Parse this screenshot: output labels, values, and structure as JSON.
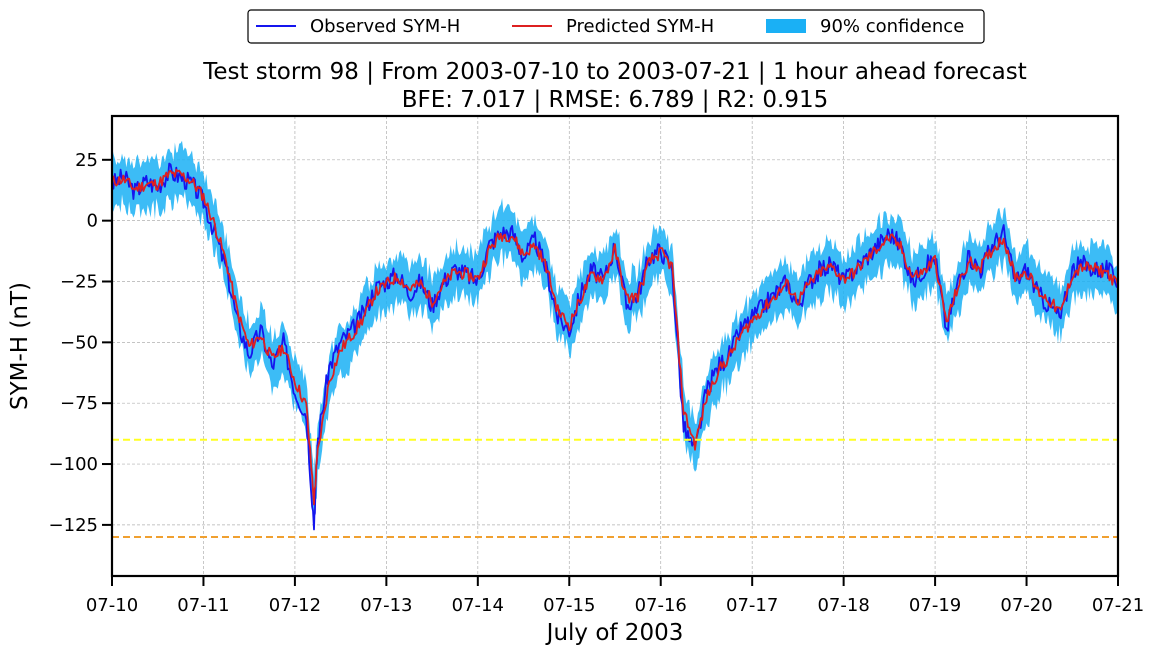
{
  "legend": {
    "items": [
      {
        "label": "Observed SYM-H",
        "color": "#1515ee",
        "kind": "line"
      },
      {
        "label": "Predicted SYM-H",
        "color": "#dd2020",
        "kind": "line"
      },
      {
        "label": "90% confidence",
        "color": "#1ab0f5",
        "kind": "patch"
      }
    ]
  },
  "chart_data": {
    "type": "line",
    "title": "Test storm 98 | From 2003-07-10 to 2003-07-21 | 1 hour ahead forecast",
    "subtitle": "BFE: 7.017 | RMSE: 6.789 | R2: 0.915",
    "xlabel": "July of 2003",
    "ylabel": "SYM-H (nT)",
    "xlim": [
      "2003-07-10",
      "2003-07-21"
    ],
    "ylim": [
      -146,
      43
    ],
    "grid": true,
    "legend_position": "top-center, outside",
    "x_ticks": [
      "07-10",
      "07-11",
      "07-12",
      "07-13",
      "07-14",
      "07-15",
      "07-16",
      "07-17",
      "07-18",
      "07-19",
      "07-20",
      "07-21"
    ],
    "y_ticks": [
      25,
      0,
      -25,
      -50,
      -75,
      -100,
      -125
    ],
    "y_tick_labels": [
      "25",
      "0",
      "−25",
      "−50",
      "−75",
      "−100",
      "−125"
    ],
    "threshold_lines": [
      {
        "y": -90,
        "color": "#ffff20"
      },
      {
        "y": -130,
        "color": "#f0a030"
      }
    ],
    "series": [
      {
        "name": "Observed SYM-H",
        "color": "#1515ee",
        "x": [
          "2003-07-10T00:00",
          "2003-07-10T03:00",
          "2003-07-10T06:00",
          "2003-07-10T09:00",
          "2003-07-10T12:00",
          "2003-07-10T15:00",
          "2003-07-10T18:00",
          "2003-07-10T21:00",
          "2003-07-11T00:00",
          "2003-07-11T03:00",
          "2003-07-11T06:00",
          "2003-07-11T09:00",
          "2003-07-11T12:00",
          "2003-07-11T15:00",
          "2003-07-11T18:00",
          "2003-07-11T21:00",
          "2003-07-12T00:00",
          "2003-07-12T03:00",
          "2003-07-12T05:00",
          "2003-07-12T06:00",
          "2003-07-12T09:00",
          "2003-07-12T12:00",
          "2003-07-12T15:00",
          "2003-07-12T18:00",
          "2003-07-12T21:00",
          "2003-07-13T00:00",
          "2003-07-13T03:00",
          "2003-07-13T06:00",
          "2003-07-13T09:00",
          "2003-07-13T12:00",
          "2003-07-13T15:00",
          "2003-07-13T18:00",
          "2003-07-13T21:00",
          "2003-07-14T00:00",
          "2003-07-14T03:00",
          "2003-07-14T06:00",
          "2003-07-14T09:00",
          "2003-07-14T12:00",
          "2003-07-14T15:00",
          "2003-07-14T18:00",
          "2003-07-14T21:00",
          "2003-07-15T00:00",
          "2003-07-15T03:00",
          "2003-07-15T06:00",
          "2003-07-15T09:00",
          "2003-07-15T12:00",
          "2003-07-15T15:00",
          "2003-07-15T18:00",
          "2003-07-15T21:00",
          "2003-07-16T00:00",
          "2003-07-16T03:00",
          "2003-07-16T06:00",
          "2003-07-16T09:00",
          "2003-07-16T12:00",
          "2003-07-16T15:00",
          "2003-07-16T18:00",
          "2003-07-16T21:00",
          "2003-07-17T00:00",
          "2003-07-17T03:00",
          "2003-07-17T06:00",
          "2003-07-17T09:00",
          "2003-07-17T12:00",
          "2003-07-17T15:00",
          "2003-07-17T18:00",
          "2003-07-17T21:00",
          "2003-07-18T00:00",
          "2003-07-18T03:00",
          "2003-07-18T06:00",
          "2003-07-18T09:00",
          "2003-07-18T12:00",
          "2003-07-18T15:00",
          "2003-07-18T18:00",
          "2003-07-18T21:00",
          "2003-07-19T00:00",
          "2003-07-19T03:00",
          "2003-07-19T06:00",
          "2003-07-19T09:00",
          "2003-07-19T12:00",
          "2003-07-19T15:00",
          "2003-07-19T18:00",
          "2003-07-19T21:00",
          "2003-07-20T00:00",
          "2003-07-20T03:00",
          "2003-07-20T06:00",
          "2003-07-20T09:00",
          "2003-07-20T12:00",
          "2003-07-20T15:00",
          "2003-07-20T18:00",
          "2003-07-20T21:00",
          "2003-07-21T00:00"
        ],
        "values": [
          15,
          18,
          12,
          16,
          14,
          20,
          18,
          15,
          8,
          -5,
          -20,
          -42,
          -55,
          -45,
          -60,
          -50,
          -70,
          -80,
          -125,
          -90,
          -60,
          -50,
          -45,
          -38,
          -28,
          -25,
          -22,
          -30,
          -25,
          -35,
          -25,
          -20,
          -22,
          -25,
          -10,
          -5,
          -5,
          -15,
          -8,
          -20,
          -40,
          -45,
          -30,
          -20,
          -25,
          -10,
          -35,
          -30,
          -15,
          -12,
          -20,
          -85,
          -95,
          -70,
          -60,
          -55,
          -45,
          -40,
          -35,
          -30,
          -25,
          -35,
          -25,
          -20,
          -18,
          -25,
          -20,
          -15,
          -10,
          -5,
          -10,
          -25,
          -20,
          -15,
          -45,
          -25,
          -15,
          -20,
          -10,
          -5,
          -25,
          -20,
          -30,
          -35,
          -40,
          -20,
          -18,
          -20,
          -20,
          -25
        ]
      },
      {
        "name": "Predicted SYM-H",
        "color": "#dd2020",
        "x": [
          "2003-07-10T00:00",
          "2003-07-10T03:00",
          "2003-07-10T06:00",
          "2003-07-10T09:00",
          "2003-07-10T12:00",
          "2003-07-10T15:00",
          "2003-07-10T18:00",
          "2003-07-10T21:00",
          "2003-07-11T00:00",
          "2003-07-11T03:00",
          "2003-07-11T06:00",
          "2003-07-11T09:00",
          "2003-07-11T12:00",
          "2003-07-11T15:00",
          "2003-07-11T18:00",
          "2003-07-11T21:00",
          "2003-07-12T00:00",
          "2003-07-12T03:00",
          "2003-07-12T05:00",
          "2003-07-12T06:00",
          "2003-07-12T09:00",
          "2003-07-12T12:00",
          "2003-07-12T15:00",
          "2003-07-12T18:00",
          "2003-07-12T21:00",
          "2003-07-13T00:00",
          "2003-07-13T03:00",
          "2003-07-13T06:00",
          "2003-07-13T09:00",
          "2003-07-13T12:00",
          "2003-07-13T15:00",
          "2003-07-13T18:00",
          "2003-07-13T21:00",
          "2003-07-14T00:00",
          "2003-07-14T03:00",
          "2003-07-14T06:00",
          "2003-07-14T09:00",
          "2003-07-14T12:00",
          "2003-07-14T15:00",
          "2003-07-14T18:00",
          "2003-07-14T21:00",
          "2003-07-15T00:00",
          "2003-07-15T03:00",
          "2003-07-15T06:00",
          "2003-07-15T09:00",
          "2003-07-15T12:00",
          "2003-07-15T15:00",
          "2003-07-15T18:00",
          "2003-07-15T21:00",
          "2003-07-16T00:00",
          "2003-07-16T03:00",
          "2003-07-16T06:00",
          "2003-07-16T09:00",
          "2003-07-16T12:00",
          "2003-07-16T15:00",
          "2003-07-16T18:00",
          "2003-07-16T21:00",
          "2003-07-17T00:00",
          "2003-07-17T03:00",
          "2003-07-17T06:00",
          "2003-07-17T09:00",
          "2003-07-17T12:00",
          "2003-07-17T15:00",
          "2003-07-17T18:00",
          "2003-07-17T21:00",
          "2003-07-18T00:00",
          "2003-07-18T03:00",
          "2003-07-18T06:00",
          "2003-07-18T09:00",
          "2003-07-18T12:00",
          "2003-07-18T15:00",
          "2003-07-18T18:00",
          "2003-07-18T21:00",
          "2003-07-19T00:00",
          "2003-07-19T03:00",
          "2003-07-19T06:00",
          "2003-07-19T09:00",
          "2003-07-19T12:00",
          "2003-07-19T15:00",
          "2003-07-19T18:00",
          "2003-07-19T21:00",
          "2003-07-20T00:00",
          "2003-07-20T03:00",
          "2003-07-20T06:00",
          "2003-07-20T09:00",
          "2003-07-20T12:00",
          "2003-07-20T15:00",
          "2003-07-20T18:00",
          "2003-07-20T21:00",
          "2003-07-21T00:00"
        ],
        "values": [
          16,
          17,
          13,
          15,
          15,
          19,
          19,
          16,
          10,
          -2,
          -17,
          -38,
          -52,
          -47,
          -57,
          -52,
          -66,
          -76,
          -115,
          -95,
          -66,
          -53,
          -47,
          -40,
          -30,
          -26,
          -23,
          -28,
          -26,
          -33,
          -26,
          -21,
          -22,
          -24,
          -12,
          -6,
          -6,
          -14,
          -10,
          -19,
          -37,
          -43,
          -32,
          -22,
          -24,
          -12,
          -32,
          -31,
          -17,
          -13,
          -19,
          -78,
          -92,
          -73,
          -62,
          -56,
          -47,
          -41,
          -36,
          -31,
          -26,
          -33,
          -26,
          -21,
          -19,
          -24,
          -21,
          -16,
          -11,
          -7,
          -11,
          -23,
          -21,
          -16,
          -42,
          -27,
          -17,
          -19,
          -12,
          -7,
          -23,
          -21,
          -29,
          -33,
          -38,
          -22,
          -19,
          -20,
          -21,
          -27
        ]
      },
      {
        "name": "90% confidence",
        "color": "#1ab0f5",
        "type": "band",
        "note_width_nT": 10,
        "x": [
          "2003-07-10",
          "2003-07-21"
        ]
      }
    ]
  }
}
